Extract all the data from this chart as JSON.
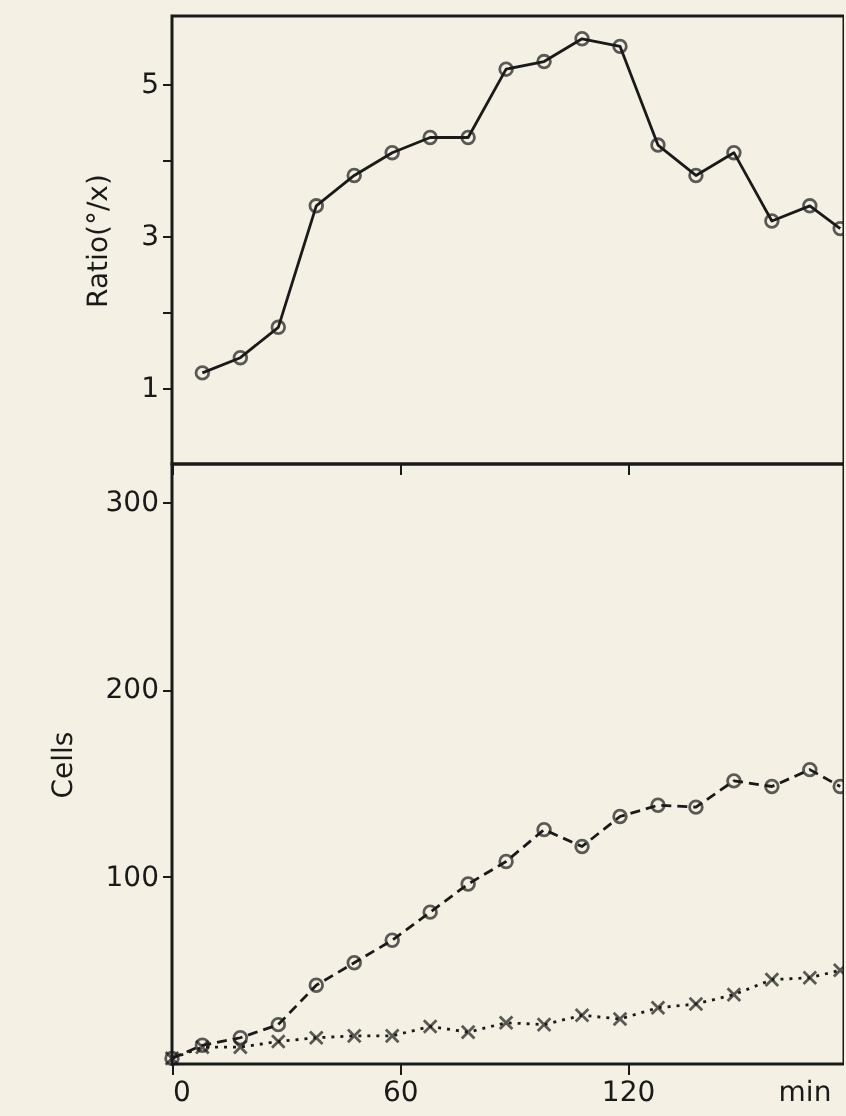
{
  "chart_data": [
    {
      "type": "line",
      "ylabel": "Ratio(°/x)",
      "x": [
        8,
        18,
        28,
        38,
        48,
        58,
        68,
        78,
        88,
        98,
        108,
        118,
        128,
        138,
        148,
        158,
        168,
        176
      ],
      "series": [
        {
          "color": "#1a1a1a",
          "marker": "circle",
          "line_style": "solid",
          "values": [
            1.2,
            1.4,
            1.8,
            3.4,
            3.8,
            4.1,
            4.3,
            4.3,
            5.2,
            5.3,
            5.6,
            5.5,
            4.2,
            3.8,
            4.1,
            3.2,
            3.4,
            3.1
          ]
        }
      ],
      "xlim": [
        0,
        177
      ],
      "xticks": [
        0,
        60,
        120
      ],
      "ylim": [
        0,
        5.9
      ],
      "yticks": [
        1,
        {
          "value": 2,
          "label": null
        },
        3,
        {
          "value": 4,
          "label": null
        },
        5
      ],
      "tick_labels": "y"
    },
    {
      "type": "line",
      "xlabel": "min",
      "ylabel": "Cells",
      "x": [
        0,
        8,
        18,
        28,
        38,
        48,
        58,
        68,
        78,
        88,
        98,
        108,
        118,
        128,
        138,
        148,
        158,
        168,
        176
      ],
      "series": [
        {
          "color": "#1a1a1a",
          "marker": "circle",
          "line_style": "dashed",
          "values": [
            3,
            10,
            14,
            21,
            42,
            54,
            66,
            81,
            96,
            108,
            125,
            116,
            132,
            138,
            137,
            151,
            148,
            157,
            148
          ]
        },
        {
          "color": "#1a1a1a",
          "marker": "cross",
          "line_style": "dotted",
          "values": [
            3,
            9,
            9,
            12,
            14,
            15,
            15,
            20,
            17,
            22,
            21,
            26,
            24,
            30,
            32,
            37,
            45,
            46,
            50
          ]
        }
      ],
      "xlim": [
        0,
        177
      ],
      "xticks": [
        0,
        60,
        120
      ],
      "ylim": [
        0,
        320
      ],
      "yticks": [
        100,
        200,
        300
      ]
    }
  ]
}
